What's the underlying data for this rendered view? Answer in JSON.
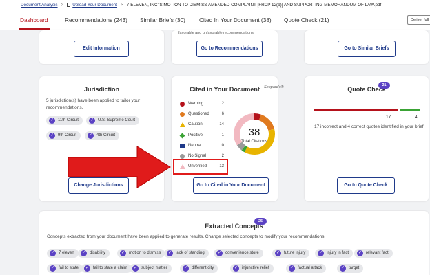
{
  "breadcrumb": {
    "root": "Document Analysis",
    "upload": "Upload Your Document",
    "document": "7-ELEVEN, INC.'S MOTION TO DISMISS AMENDED COMPLAINT [FRCP 12(b)] AND SUPPORTING MEMORANDUM OF LAW.pdf",
    "separator": ">"
  },
  "tabs": [
    {
      "label": "Dashboard"
    },
    {
      "label": "Recommendations (243)"
    },
    {
      "label": "Similar Briefs (30)"
    },
    {
      "label": "Cited In Your Document (38)"
    },
    {
      "label": "Quote Check (21)"
    }
  ],
  "deliver_label": "Deliver full",
  "top_cards": {
    "edit_label": "Edit Information",
    "recs_fragment": "favorable and unfavorable recommendations",
    "recs_label": "Go to Recommendations",
    "similar_label": "Go to Similar Briefs"
  },
  "jurisdiction": {
    "title": "Jurisdiction",
    "description": "5 jurisdiction(s) have been applied to tailor your recommendations.",
    "chips": [
      "11th Circuit",
      "U.S. Supreme Court",
      "9th Circuit",
      "4th Circuit"
    ],
    "button": "Change Jurisdictions"
  },
  "cited": {
    "title": "Cited in Your Document",
    "shepards": "Shepard's®",
    "rows": [
      {
        "label": "Warning",
        "count": "2",
        "color": "#b5121b",
        "shape": "circle"
      },
      {
        "label": "Questioned",
        "count": "6",
        "color": "#e07a1f",
        "shape": "circle"
      },
      {
        "label": "Caution",
        "count": "14",
        "color": "#e8b400",
        "shape": "triangle"
      },
      {
        "label": "Positive",
        "count": "1",
        "color": "#3aa335",
        "shape": "diamond"
      },
      {
        "label": "Neutral",
        "count": "0",
        "color": "#1f3a8a",
        "shape": "square"
      },
      {
        "label": "No Signal",
        "count": "2",
        "color": "#999999",
        "shape": "circle"
      },
      {
        "label": "Unverified",
        "count": "13",
        "color": "#f2b9c1",
        "shape": "triangle-light"
      }
    ],
    "total": "38",
    "total_label": "Total Citations",
    "button": "Go to Cited in Your Document"
  },
  "quote": {
    "title": "Quote Check",
    "badge": "21",
    "incorrect": "17",
    "correct": "4",
    "incorrect_color": "#b5121b",
    "correct_color": "#3aa335",
    "description": "17 incorrect and 4 correct quotes identified in your brief",
    "button": "Go to Quote Check"
  },
  "concepts": {
    "title": "Extracted Concepts",
    "badge": "25",
    "description": "Concepts extracted from your document have been applied to generate results. Change selected concepts to modify your recommendations.",
    "row1": [
      "7 eleven",
      "disability",
      "motion to dismiss",
      "lack of standing",
      "convenience store",
      "future injury",
      "injury in fact",
      "relevant fact"
    ],
    "row2": [
      "fail to state",
      "fail to state a claim",
      "subject matter",
      "different city",
      "injunctive relief",
      "factual attack",
      "target"
    ]
  },
  "accent_color": "#1f3a8a",
  "active_tab_color": "#b5121b",
  "callout_color": "#e01b1b"
}
